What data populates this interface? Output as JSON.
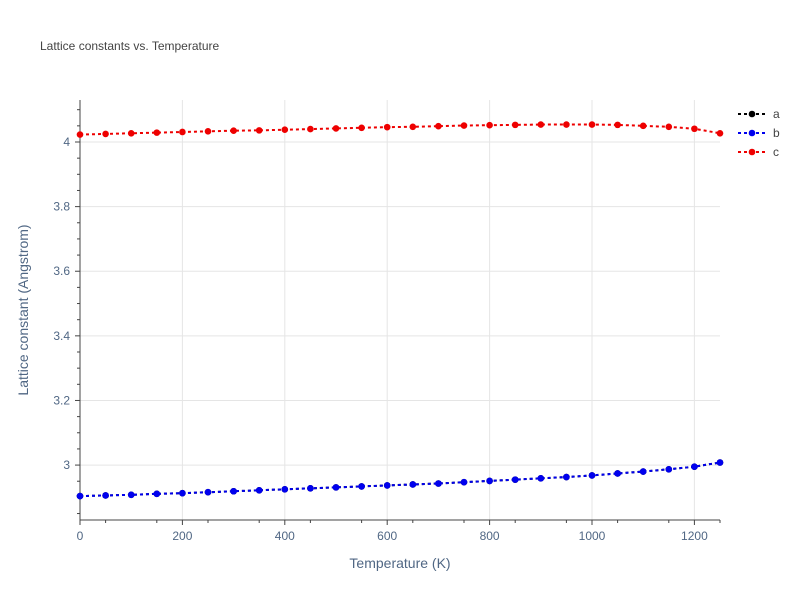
{
  "chart_data": {
    "type": "line",
    "title": "Lattice constants vs. Temperature",
    "xlabel": "Temperature (K)",
    "ylabel": "Lattice constant (Angstrom)",
    "xlim": [
      0,
      1250
    ],
    "ylim": [
      2.83,
      4.13
    ],
    "x_ticks": [
      0,
      200,
      400,
      600,
      800,
      1000,
      1200
    ],
    "y_ticks": [
      3.0,
      3.2,
      3.4,
      3.6,
      3.8,
      4.0
    ],
    "y_tick_labels": [
      "3",
      "3.2",
      "3.4",
      "3.6",
      "3.8",
      "4"
    ],
    "x_tick_labels": [
      "0",
      "200",
      "400",
      "600",
      "800",
      "1000",
      "1200"
    ],
    "grid": true,
    "legend_position": "top-right",
    "x": [
      0,
      50,
      100,
      150,
      200,
      250,
      300,
      350,
      400,
      450,
      500,
      550,
      600,
      650,
      700,
      750,
      800,
      850,
      900,
      950,
      1000,
      1050,
      1100,
      1150,
      1200,
      1250
    ],
    "series": [
      {
        "name": "a",
        "color": "#000000",
        "values": [
          2.904,
          2.906,
          2.908,
          2.911,
          2.913,
          2.916,
          2.919,
          2.922,
          2.925,
          2.928,
          2.931,
          2.934,
          2.937,
          2.94,
          2.943,
          2.947,
          2.951,
          2.955,
          2.959,
          2.963,
          2.968,
          2.974,
          2.98,
          2.987,
          2.995,
          3.008
        ]
      },
      {
        "name": "b",
        "color": "#0000ee",
        "values": [
          2.904,
          2.906,
          2.908,
          2.911,
          2.913,
          2.916,
          2.919,
          2.922,
          2.925,
          2.928,
          2.931,
          2.934,
          2.937,
          2.94,
          2.943,
          2.947,
          2.951,
          2.955,
          2.959,
          2.963,
          2.968,
          2.974,
          2.98,
          2.987,
          2.995,
          3.008
        ]
      },
      {
        "name": "c",
        "color": "#ee0000",
        "values": [
          4.023,
          4.025,
          4.027,
          4.029,
          4.031,
          4.033,
          4.035,
          4.036,
          4.038,
          4.04,
          4.042,
          4.044,
          4.046,
          4.047,
          4.049,
          4.051,
          4.052,
          4.053,
          4.054,
          4.054,
          4.054,
          4.053,
          4.05,
          4.047,
          4.041,
          4.027
        ]
      }
    ]
  }
}
